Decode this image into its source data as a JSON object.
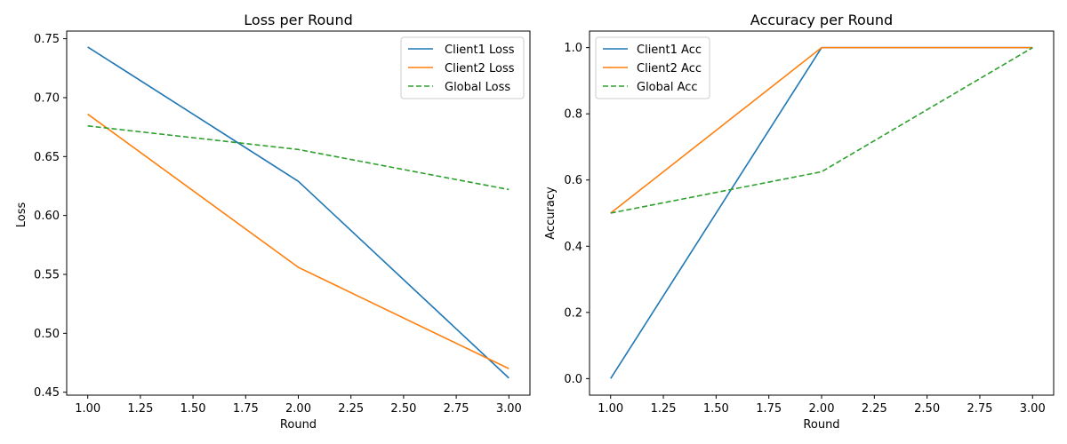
{
  "chart_data": [
    {
      "type": "line",
      "title": "Loss per Round",
      "xlabel": "Round",
      "ylabel": "Loss",
      "xlim": [
        0.9,
        3.1
      ],
      "ylim": [
        0.4475,
        0.7565
      ],
      "xticks": [
        1.0,
        1.25,
        1.5,
        1.75,
        2.0,
        2.25,
        2.5,
        2.75,
        3.0
      ],
      "xtick_labels": [
        "1.00",
        "1.25",
        "1.50",
        "1.75",
        "2.00",
        "2.25",
        "2.50",
        "2.75",
        "3.00"
      ],
      "yticks": [
        0.45,
        0.5,
        0.55,
        0.6,
        0.65,
        0.7,
        0.75
      ],
      "ytick_labels": [
        "0.45",
        "0.50",
        "0.55",
        "0.60",
        "0.65",
        "0.70",
        "0.75"
      ],
      "legend_position": "top-right",
      "grid": false,
      "series": [
        {
          "name": "Client1 Loss",
          "x": [
            1,
            2,
            3
          ],
          "values": [
            0.743,
            0.629,
            0.462
          ],
          "color": "#1f77b4",
          "dash": false
        },
        {
          "name": "Client2 Loss",
          "x": [
            1,
            2,
            3
          ],
          "values": [
            0.686,
            0.556,
            0.47
          ],
          "color": "#ff7f0e",
          "dash": false
        },
        {
          "name": "Global Loss",
          "x": [
            1,
            2,
            3
          ],
          "values": [
            0.676,
            0.656,
            0.622
          ],
          "color": "#2ca02c",
          "dash": true
        }
      ]
    },
    {
      "type": "line",
      "title": "Accuracy per Round",
      "xlabel": "Round",
      "ylabel": "Accuracy",
      "xlim": [
        0.9,
        3.1
      ],
      "ylim": [
        -0.05,
        1.05
      ],
      "xticks": [
        1.0,
        1.25,
        1.5,
        1.75,
        2.0,
        2.25,
        2.5,
        2.75,
        3.0
      ],
      "xtick_labels": [
        "1.00",
        "1.25",
        "1.50",
        "1.75",
        "2.00",
        "2.25",
        "2.50",
        "2.75",
        "3.00"
      ],
      "yticks": [
        0.0,
        0.2,
        0.4,
        0.6,
        0.8,
        1.0
      ],
      "ytick_labels": [
        "0.0",
        "0.2",
        "0.4",
        "0.6",
        "0.8",
        "1.0"
      ],
      "legend_position": "top-left",
      "grid": false,
      "series": [
        {
          "name": "Client1 Acc",
          "x": [
            1,
            2,
            3
          ],
          "values": [
            0.0,
            1.0,
            1.0
          ],
          "color": "#1f77b4",
          "dash": false
        },
        {
          "name": "Client2 Acc",
          "x": [
            1,
            2,
            3
          ],
          "values": [
            0.5,
            1.0,
            1.0
          ],
          "color": "#ff7f0e",
          "dash": false
        },
        {
          "name": "Global Acc",
          "x": [
            1,
            2,
            3
          ],
          "values": [
            0.5,
            0.625,
            1.0
          ],
          "color": "#2ca02c",
          "dash": true
        }
      ]
    }
  ]
}
